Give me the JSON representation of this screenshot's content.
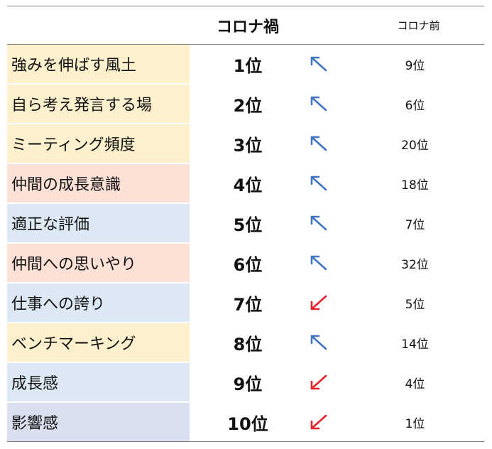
{
  "header": {
    "during_label": "コロナ禍",
    "before_label": "コロナ前"
  },
  "colors": {
    "yellow": "#fdf0cc",
    "pink": "#fde0d6",
    "blue": "#dde8f5",
    "lavender": "#dadff0",
    "arrow_up": "#3f75c3",
    "arrow_down": "#e8202a"
  },
  "rows": [
    {
      "item": "強みを伸ばす風土",
      "during": "1位",
      "trend": "up",
      "before": "9位",
      "tone": "yellow"
    },
    {
      "item": "自ら考え発言する場",
      "during": "2位",
      "trend": "up",
      "before": "6位",
      "tone": "yellow"
    },
    {
      "item": "ミーティング頻度",
      "during": "3位",
      "trend": "up",
      "before": "20位",
      "tone": "yellow"
    },
    {
      "item": "仲間の成長意識",
      "during": "4位",
      "trend": "up",
      "before": "18位",
      "tone": "pink"
    },
    {
      "item": "適正な評価",
      "during": "5位",
      "trend": "up",
      "before": "7位",
      "tone": "blue"
    },
    {
      "item": "仲間への思いやり",
      "during": "6位",
      "trend": "up",
      "before": "32位",
      "tone": "pink"
    },
    {
      "item": "仕事への誇り",
      "during": "7位",
      "trend": "down",
      "before": "5位",
      "tone": "blue"
    },
    {
      "item": "ベンチマーキング",
      "during": "8位",
      "trend": "up",
      "before": "14位",
      "tone": "yellow"
    },
    {
      "item": "成長感",
      "during": "9位",
      "trend": "down",
      "before": "4位",
      "tone": "blue"
    },
    {
      "item": "影響感",
      "during": "10位",
      "trend": "down",
      "before": "1位",
      "tone": "lavender"
    }
  ]
}
